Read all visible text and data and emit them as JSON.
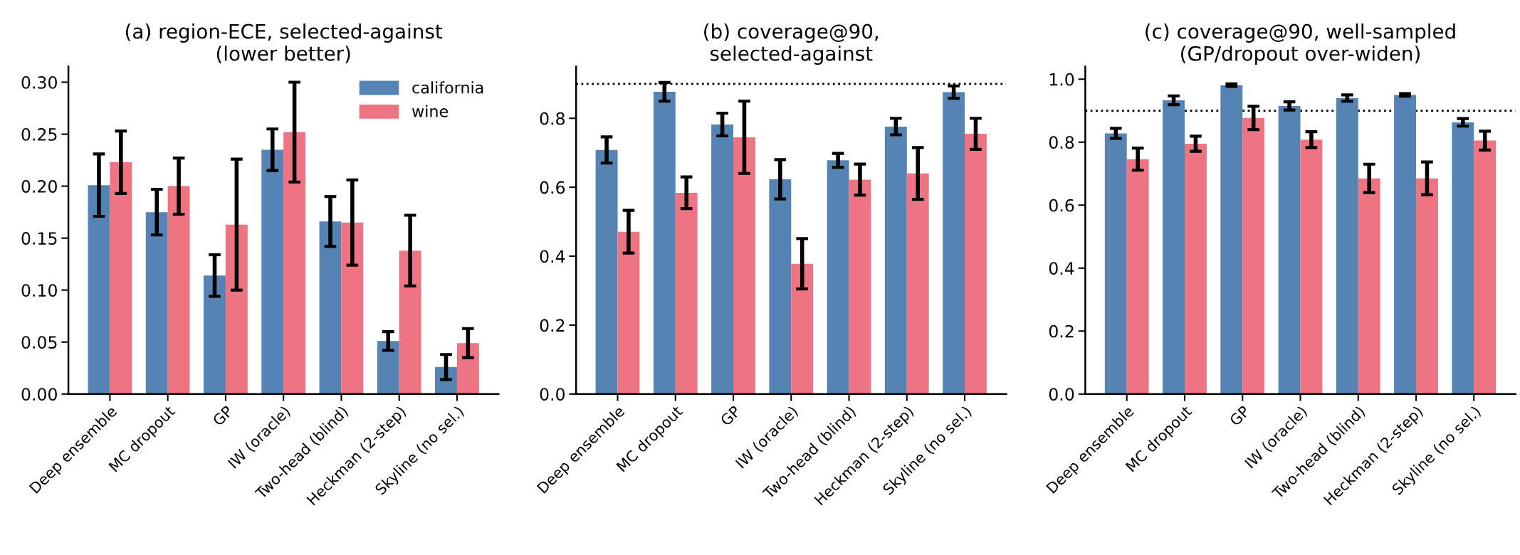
{
  "chart_data": [
    {
      "type": "bar",
      "title": "(a) region-ECE, selected-against\n(lower better)",
      "categories": [
        "Deep ensemble",
        "MC dropout",
        "GP",
        "IW (oracle)",
        "Two-head (blind)",
        "Heckman (2-step)",
        "Skyline (no sel.)"
      ],
      "series": [
        {
          "name": "california",
          "color": "#5583b3",
          "values": [
            0.201,
            0.175,
            0.114,
            0.235,
            0.166,
            0.051,
            0.026
          ],
          "errors": [
            0.03,
            0.022,
            0.02,
            0.02,
            0.024,
            0.009,
            0.012
          ]
        },
        {
          "name": "wine",
          "color": "#ef7483",
          "values": [
            0.223,
            0.2,
            0.163,
            0.252,
            0.165,
            0.138,
            0.049
          ],
          "errors": [
            0.03,
            0.027,
            0.063,
            0.048,
            0.041,
            0.034,
            0.014
          ]
        }
      ],
      "ylim": [
        0,
        0.315
      ],
      "yticks": [
        {
          "value": 0,
          "label": "0.00"
        },
        0.05,
        {
          "value": 0.1,
          "label": "0.10"
        },
        0.15,
        {
          "value": 0.2,
          "label": "0.20"
        },
        0.25,
        {
          "value": 0.3,
          "label": "0.30"
        }
      ],
      "legend": "top right",
      "grid": false
    },
    {
      "type": "bar",
      "title": "(b) coverage@90,\nselected-against",
      "categories": [
        "Deep ensemble",
        "MC dropout",
        "GP",
        "IW (oracle)",
        "Two-head (blind)",
        "Heckman (2-step)",
        "Skyline (no sel.)"
      ],
      "series": [
        {
          "color": "#5583b3",
          "values": [
            0.708,
            0.877,
            0.782,
            0.623,
            0.678,
            0.776,
            0.876
          ],
          "errors": [
            0.038,
            0.027,
            0.033,
            0.057,
            0.02,
            0.024,
            0.018
          ]
        },
        {
          "color": "#ef7483",
          "values": [
            0.471,
            0.584,
            0.745,
            0.378,
            0.622,
            0.64,
            0.755
          ],
          "errors": [
            0.062,
            0.046,
            0.105,
            0.073,
            0.045,
            0.075,
            0.045
          ]
        }
      ],
      "ylim": [
        0,
        0.95
      ],
      "yticks": [
        {
          "value": 0,
          "label": "0.0"
        },
        0.2,
        0.4,
        0.6,
        0.8
      ],
      "ref_lines": [
        {
          "axis": "y",
          "value": 0.9,
          "color": "#000000",
          "line_style": "dotted"
        }
      ],
      "legend": false,
      "grid": false
    },
    {
      "type": "bar",
      "title": "(c) coverage@90, well-sampled\n(GP/dropout over-widen)",
      "categories": [
        "Deep ensemble",
        "MC dropout",
        "GP",
        "IW (oracle)",
        "Two-head (blind)",
        "Heckman (2-step)",
        "Skyline (no sel.)"
      ],
      "series": [
        {
          "color": "#5583b3",
          "values": [
            0.828,
            0.933,
            0.981,
            0.915,
            0.94,
            0.95,
            0.863
          ],
          "errors": [
            0.016,
            0.014,
            0.004,
            0.013,
            0.01,
            0.004,
            0.012
          ]
        },
        {
          "color": "#ef7483",
          "values": [
            0.746,
            0.795,
            0.877,
            0.808,
            0.685,
            0.685,
            0.805
          ],
          "errors": [
            0.035,
            0.024,
            0.037,
            0.025,
            0.045,
            0.052,
            0.03
          ]
        }
      ],
      "ylim": [
        0,
        1.04
      ],
      "yticks": [
        {
          "value": 0,
          "label": "0.0"
        },
        0.2,
        0.4,
        0.6,
        0.8,
        {
          "value": 1,
          "label": "1.0"
        }
      ],
      "ref_lines": [
        {
          "axis": "y",
          "value": 0.9,
          "color": "#000000",
          "line_style": "dotted"
        }
      ],
      "legend": false,
      "grid": false
    }
  ]
}
